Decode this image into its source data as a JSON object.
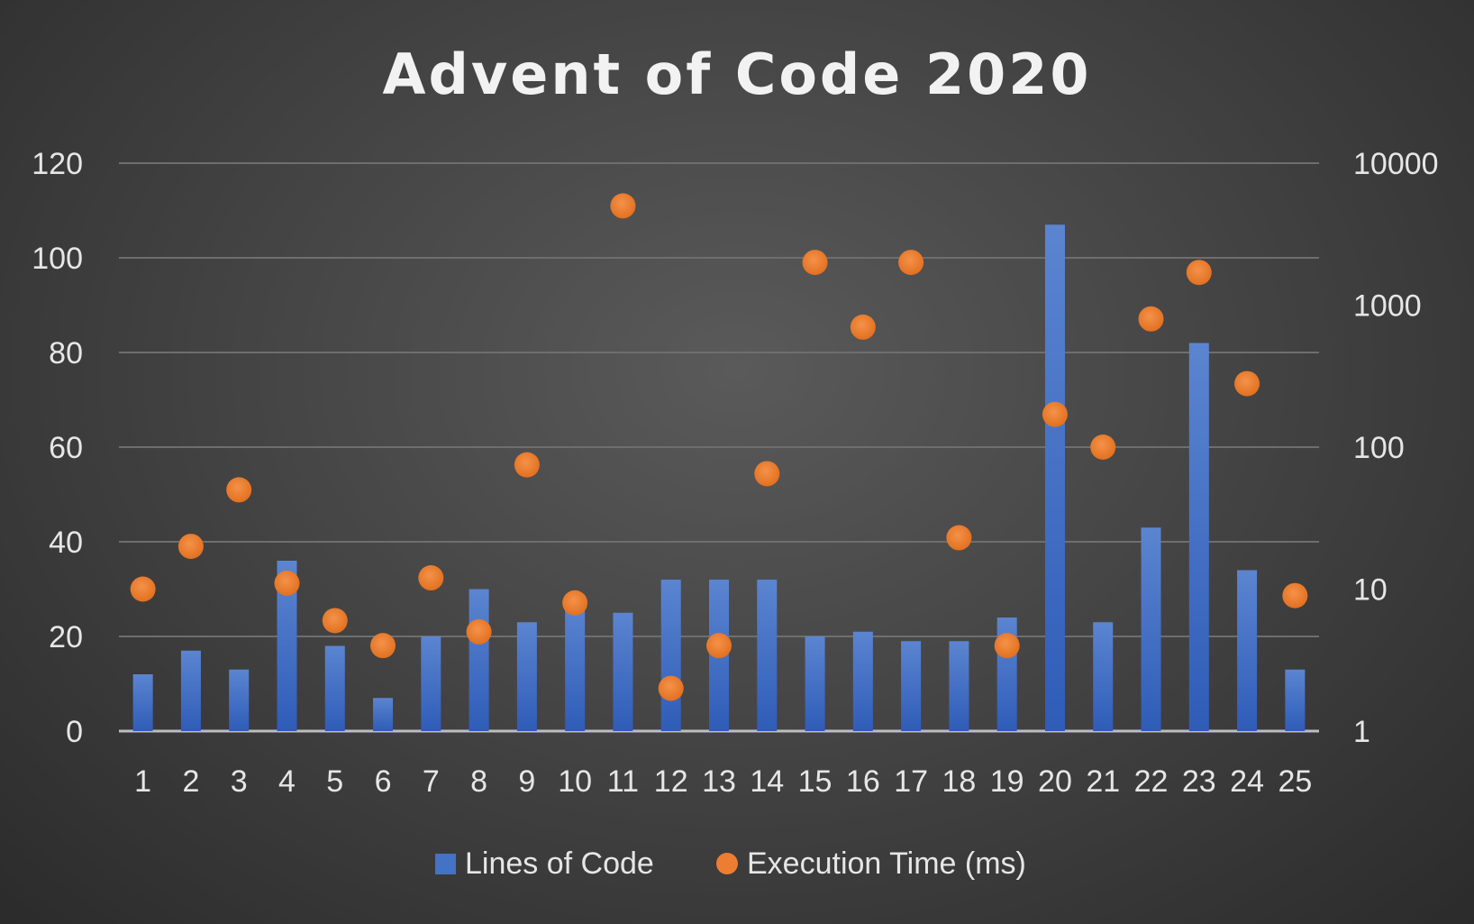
{
  "chart_data": {
    "type": "bar",
    "title": "Advent of Code 2020",
    "categories": [
      "1",
      "2",
      "3",
      "4",
      "5",
      "6",
      "7",
      "8",
      "9",
      "10",
      "11",
      "12",
      "13",
      "14",
      "15",
      "16",
      "17",
      "18",
      "19",
      "20",
      "21",
      "22",
      "23",
      "24",
      "25"
    ],
    "series": [
      {
        "name": "Lines of Code",
        "type": "bar",
        "axis": "left",
        "color": "#4472c4",
        "values": [
          12,
          17,
          13,
          36,
          18,
          7,
          20,
          30,
          23,
          27,
          25,
          32,
          32,
          32,
          20,
          21,
          19,
          19,
          24,
          107,
          23,
          43,
          82,
          34,
          13
        ]
      },
      {
        "name": "Execution Time (ms)",
        "type": "scatter",
        "axis": "right",
        "color": "#ed7d31",
        "values": [
          10,
          20,
          50,
          11,
          6,
          4,
          12,
          5,
          75,
          8,
          5000,
          2,
          4,
          65,
          2000,
          700,
          2000,
          23,
          4,
          170,
          100,
          800,
          1700,
          280,
          9
        ]
      }
    ],
    "y_left": {
      "min": 0,
      "max": 120,
      "ticks": [
        0,
        20,
        40,
        60,
        80,
        100,
        120
      ]
    },
    "y_right": {
      "scale": "log",
      "min": 1,
      "max": 10000,
      "ticks": [
        1,
        10,
        100,
        1000,
        10000
      ]
    },
    "grid": true,
    "legend": "bottom"
  }
}
